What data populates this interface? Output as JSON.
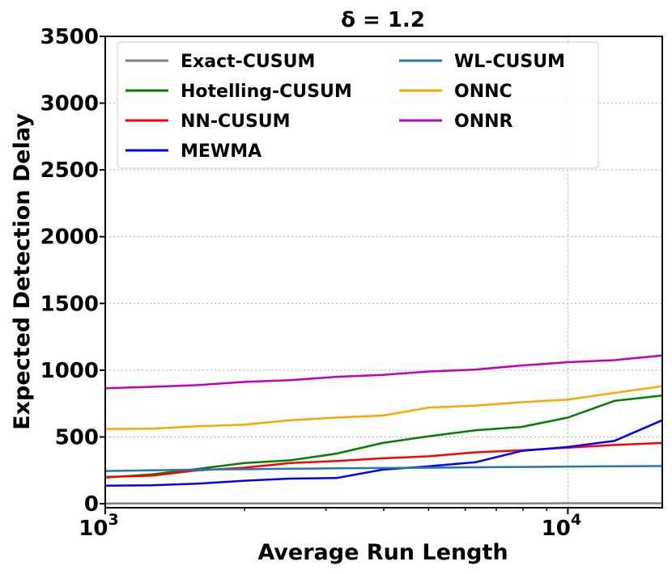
{
  "chart_data": {
    "type": "line",
    "title": "δ = 1.2",
    "xlabel": "Average Run Length",
    "ylabel": "Expected Detection Delay",
    "xscale": "log",
    "xlim": [
      1000,
      16000
    ],
    "ylim": [
      -30,
      3500
    ],
    "x_ticks": [
      {
        "value": 1000,
        "base": "10",
        "exp": "3"
      },
      {
        "value": 10000,
        "base": "10",
        "exp": "4"
      }
    ],
    "y_ticks": [
      "0",
      "500",
      "1000",
      "1500",
      "2000",
      "2500",
      "3000",
      "3500"
    ],
    "grid": true,
    "legend_position": "top-left",
    "series": [
      {
        "name": "Exact-CUSUM",
        "color": "#808080",
        "x": [
          1000,
          1260,
          1580,
          2000,
          2510,
          3160,
          3980,
          5010,
          6310,
          7940,
          10000,
          12600,
          16000
        ],
        "y": [
          2,
          2,
          2,
          2,
          2,
          2,
          2,
          2,
          2,
          2,
          3,
          3,
          3
        ]
      },
      {
        "name": "Hotelling-CUSUM",
        "color": "#008000",
        "x": [
          1000,
          1260,
          1580,
          2000,
          2510,
          3160,
          3980,
          5010,
          6310,
          7940,
          10000,
          12600,
          16000
        ],
        "y": [
          195,
          220,
          260,
          305,
          325,
          375,
          455,
          505,
          550,
          575,
          645,
          770,
          810
        ]
      },
      {
        "name": "NN-CUSUM",
        "color": "#ff0000",
        "x": [
          1000,
          1260,
          1580,
          2000,
          2510,
          3160,
          3980,
          5010,
          6310,
          7940,
          10000,
          12600,
          16000
        ],
        "y": [
          200,
          210,
          250,
          270,
          305,
          320,
          340,
          355,
          385,
          400,
          420,
          440,
          455
        ]
      },
      {
        "name": "MEWMA",
        "color": "#0000ff",
        "x": [
          1000,
          1260,
          1580,
          2000,
          2510,
          3160,
          3980,
          5010,
          6310,
          7940,
          10000,
          12600,
          16000
        ],
        "y": [
          135,
          138,
          150,
          172,
          188,
          192,
          255,
          280,
          310,
          395,
          425,
          470,
          625
        ]
      },
      {
        "name": "WL-CUSUM",
        "color": "#1f77b4",
        "x": [
          1000,
          1260,
          1580,
          2000,
          2510,
          3160,
          3980,
          5010,
          6310,
          7940,
          10000,
          12600,
          16000
        ],
        "y": [
          245,
          250,
          255,
          258,
          262,
          265,
          267,
          270,
          273,
          275,
          278,
          280,
          282
        ]
      },
      {
        "name": "ONNC",
        "color": "#ffa500",
        "x": [
          1000,
          1260,
          1580,
          2000,
          2510,
          3160,
          3980,
          5010,
          6310,
          7940,
          10000,
          12600,
          16000
        ],
        "y": [
          560,
          562,
          580,
          592,
          625,
          645,
          660,
          720,
          735,
          760,
          780,
          830,
          880
        ]
      },
      {
        "name": "ONNR",
        "color": "#bf00bf",
        "x": [
          1000,
          1260,
          1580,
          2000,
          2510,
          3160,
          3980,
          5010,
          6310,
          7940,
          10000,
          12600,
          16000
        ],
        "y": [
          865,
          875,
          888,
          912,
          925,
          950,
          965,
          990,
          1005,
          1035,
          1060,
          1075,
          1110
        ]
      }
    ]
  }
}
